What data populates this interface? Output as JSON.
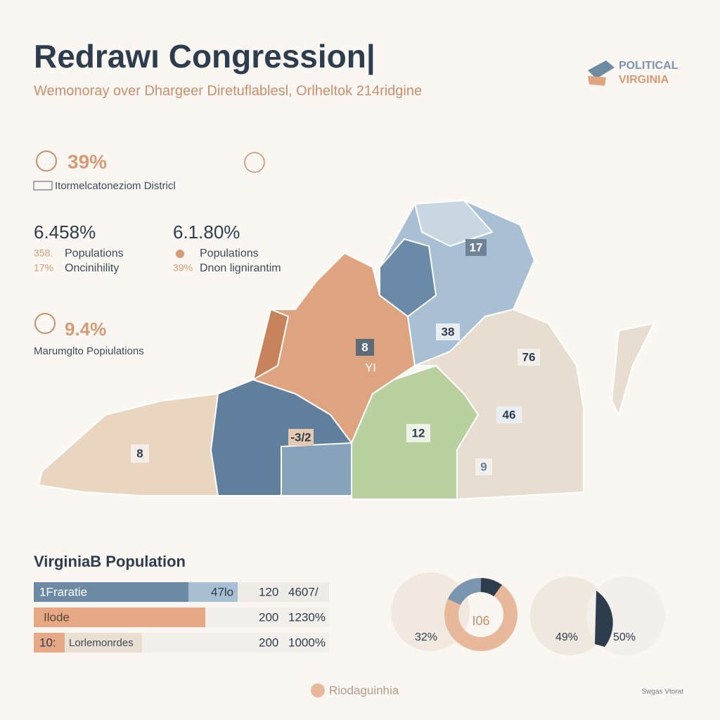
{
  "header": {
    "title": "Redrawı Congression|",
    "subtitle": "Wemonoray over Dhargeer Diretuflablesl, Orlheltok 214ridgine",
    "logo": [
      "POLITICAL",
      "VIRGINIA"
    ]
  },
  "stats": [
    {
      "value": "39%",
      "label": "Itormelcatoneziom Districl"
    },
    {
      "value": "6.458%",
      "lines": [
        {
          "key": "358.",
          "text": "Populations"
        },
        {
          "key": "17%",
          "text": "Oncinihility"
        }
      ]
    },
    {
      "value": "6.1.80%",
      "lines": [
        {
          "text": "Populations"
        },
        {
          "key": "39%",
          "text": "Dnon lignirantim"
        }
      ]
    },
    {
      "value": "9.4%",
      "label": "Marumglto Popiulations"
    }
  ],
  "map": {
    "districts": [
      "17",
      "38",
      "8",
      "YI",
      "76",
      "46",
      "-3/2",
      "12",
      "9",
      "8"
    ]
  },
  "population": {
    "title": "VirginiaB Population",
    "rows": [
      {
        "label": "1Fraratie",
        "bar_label": "47lo",
        "count": "120",
        "percent": "4607/"
      },
      {
        "label": "Ilode",
        "count": "200",
        "percent": "1230%"
      },
      {
        "label": "10:",
        "bar_label": "Lorlemonrdes",
        "count": "200",
        "percent": "1000%"
      }
    ]
  },
  "circles": [
    "32%",
    "I06",
    "49%",
    "50%"
  ],
  "footer": {
    "brand": "Riodaguinhia",
    "source": "Swgas Vtorat"
  }
}
